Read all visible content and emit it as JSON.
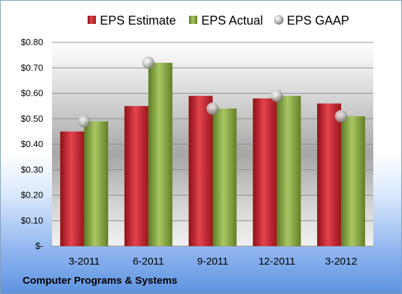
{
  "chart_data": {
    "type": "bar",
    "categories": [
      "3-2011",
      "6-2011",
      "9-2011",
      "12-2011",
      "3-2012"
    ],
    "series": [
      {
        "name": "EPS Estimate",
        "type": "bar",
        "values": [
          0.45,
          0.55,
          0.59,
          0.58,
          0.56
        ]
      },
      {
        "name": "EPS Actual",
        "type": "bar",
        "values": [
          0.49,
          0.72,
          0.54,
          0.59,
          0.51
        ]
      },
      {
        "name": "EPS GAAP",
        "type": "scatter",
        "values": [
          0.49,
          0.72,
          0.54,
          0.59,
          0.51
        ]
      }
    ],
    "ylim": [
      0,
      0.8
    ],
    "yticks": [
      0,
      0.1,
      0.2,
      0.3,
      0.4,
      0.5,
      0.6,
      0.7,
      0.8
    ],
    "ytick_labels": [
      "$-",
      "$0.10",
      "$0.20",
      "$0.30",
      "$0.40",
      "$0.50",
      "$0.60",
      "$0.70",
      "$0.80"
    ],
    "grid": true,
    "legend_position": "top",
    "colors": {
      "estimate": "#c0272d",
      "actual": "#7ea23b",
      "gaap": "#b4b4b4"
    }
  },
  "footer": {
    "title": "Computer Programs & Systems"
  }
}
